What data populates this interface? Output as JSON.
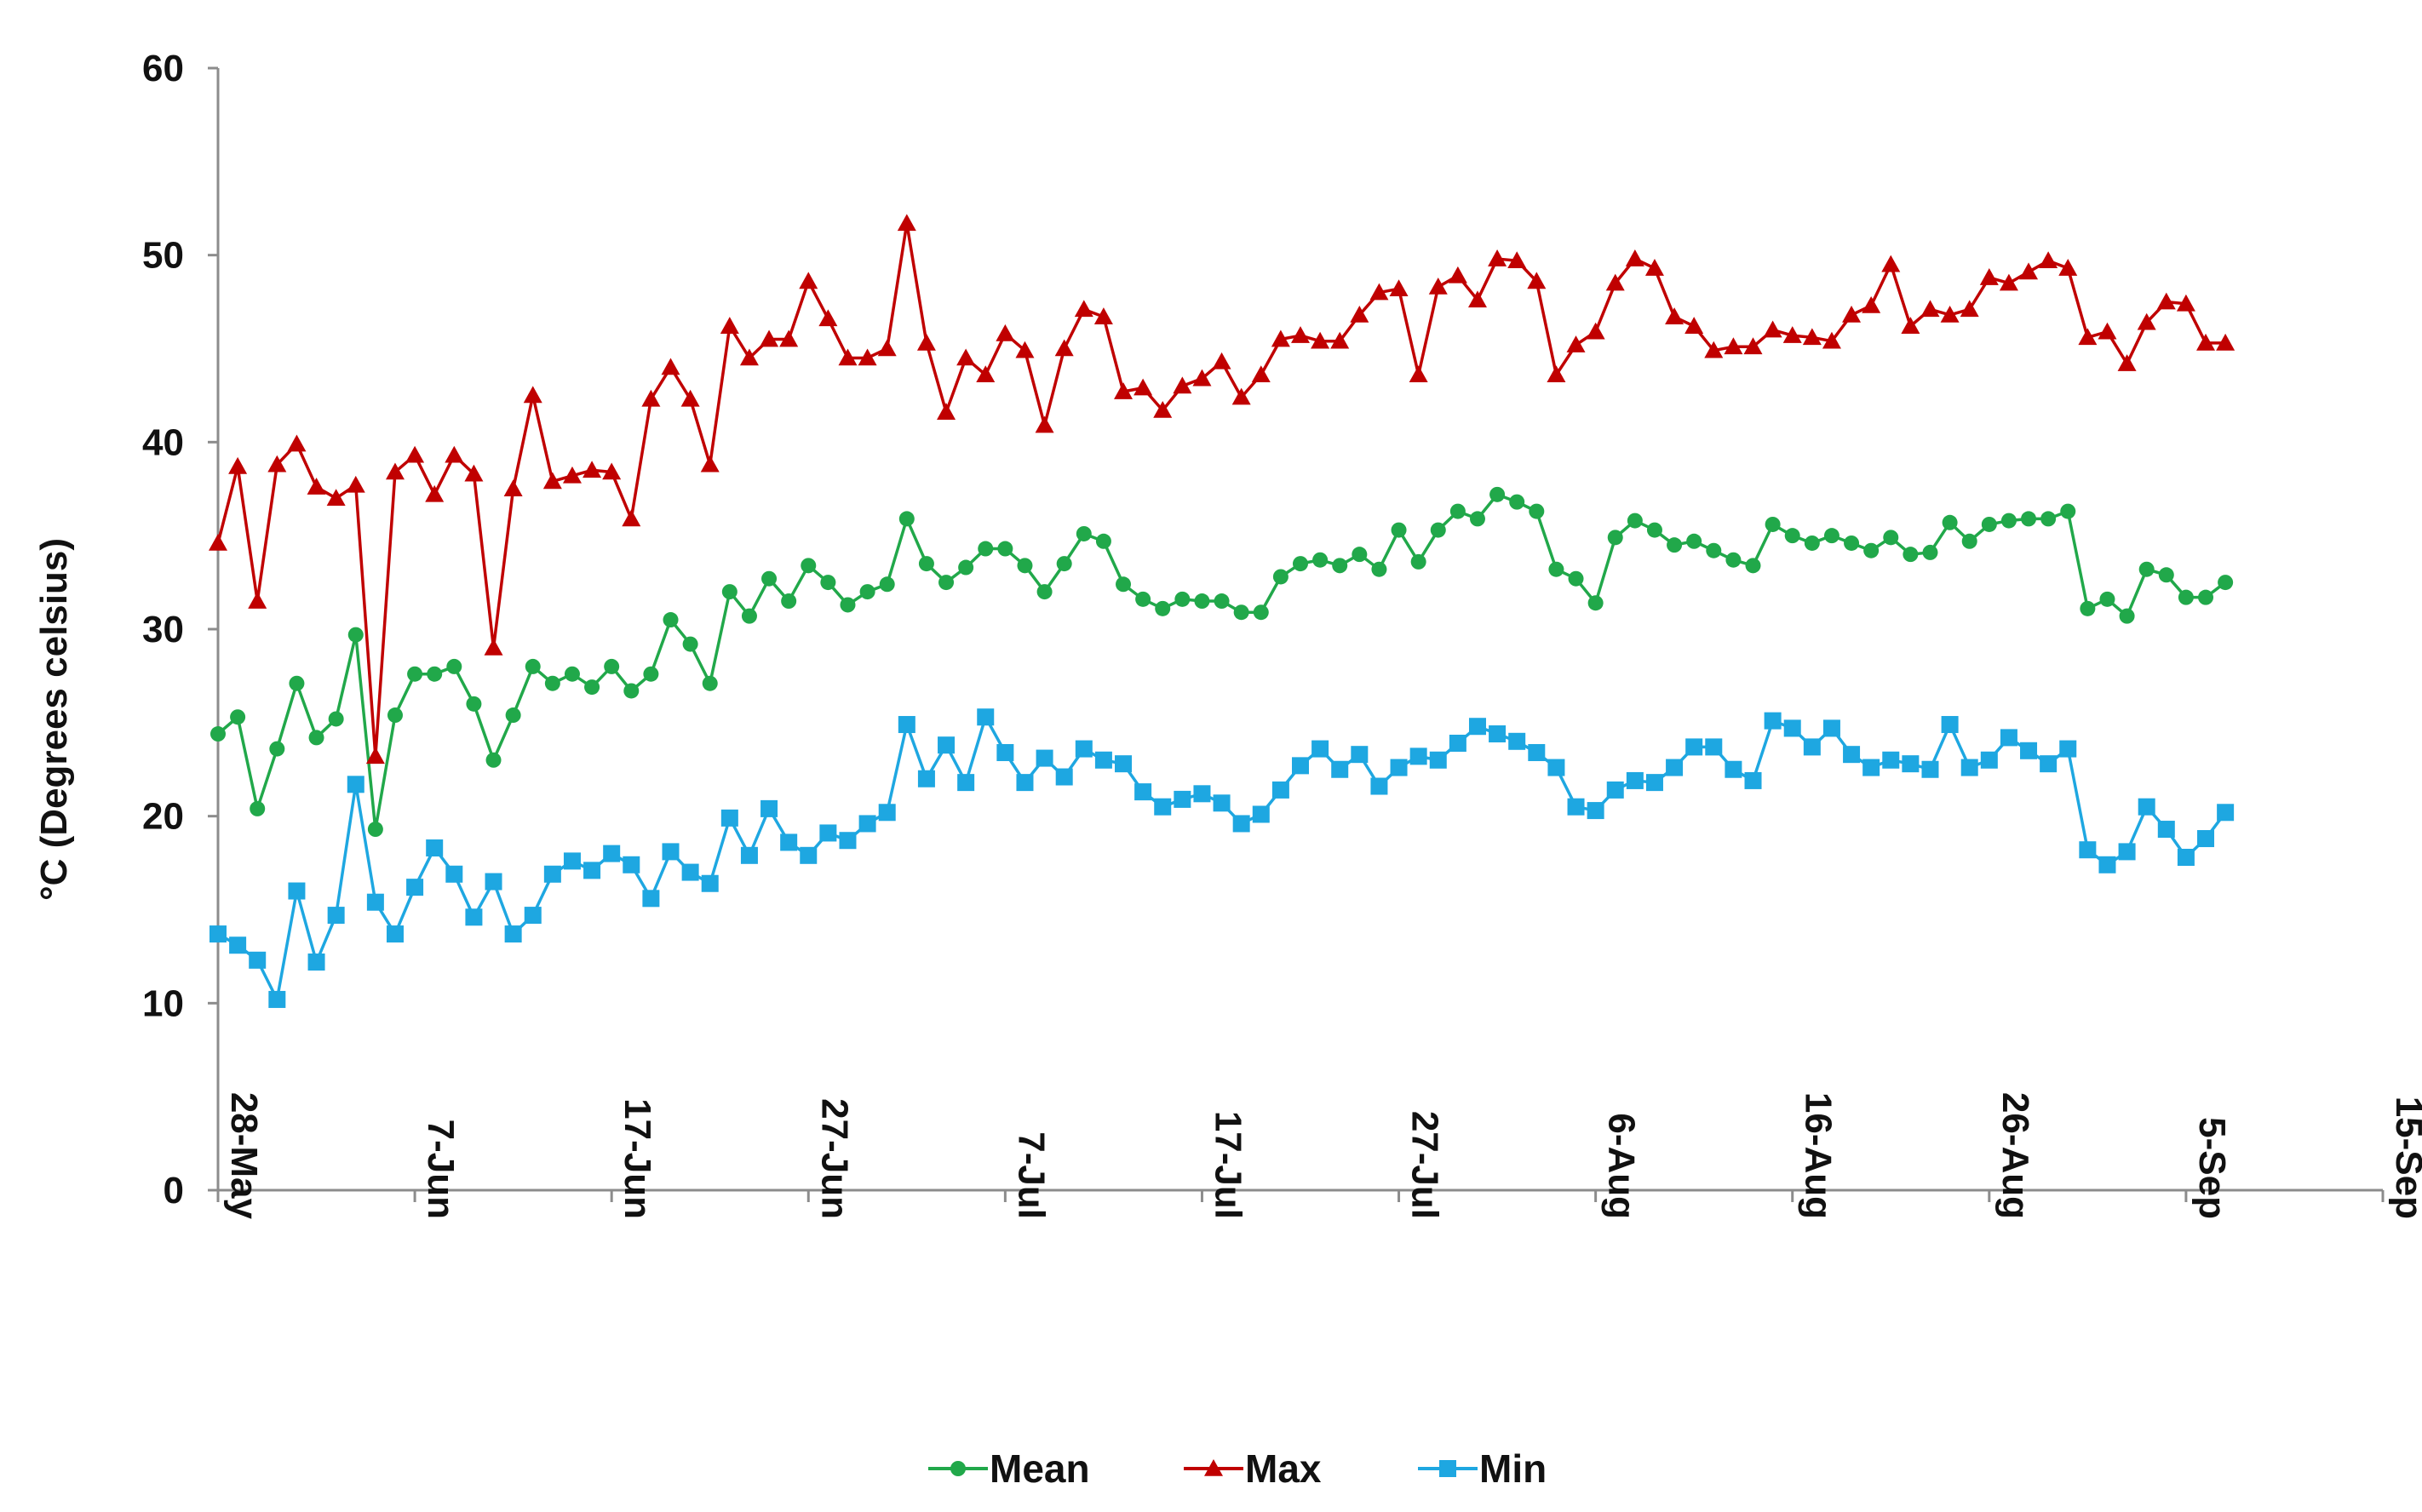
{
  "chart_data": {
    "type": "line",
    "title": "",
    "xlabel": "",
    "ylabel": "°C (Degrees celsius)",
    "ylim": [
      0,
      60
    ],
    "xlim": [
      "28-May",
      "15-Sep"
    ],
    "y_ticks": [
      "0",
      "10",
      "20",
      "30",
      "40",
      "50",
      "60"
    ],
    "x_ticks": [
      "28-May",
      "7-Jun",
      "17-Jun",
      "27-Jun",
      "7-Jul",
      "17-Jul",
      "27-Jul",
      "6-Aug",
      "16-Aug",
      "26-Aug",
      "5-Sep",
      "15-Sep"
    ],
    "grid": false,
    "legend_position": "bottom",
    "x_start_date": "28-May",
    "x_unit": "day",
    "x_dates": [
      "28-May",
      "29-May",
      "30-May",
      "31-May",
      "1-Jun",
      "2-Jun",
      "3-Jun",
      "4-Jun",
      "5-Jun",
      "6-Jun",
      "7-Jun",
      "8-Jun",
      "9-Jun",
      "10-Jun",
      "11-Jun",
      "12-Jun",
      "13-Jun",
      "14-Jun",
      "15-Jun",
      "16-Jun",
      "17-Jun",
      "18-Jun",
      "19-Jun",
      "20-Jun",
      "21-Jun",
      "22-Jun",
      "23-Jun",
      "24-Jun",
      "25-Jun",
      "26-Jun",
      "27-Jun",
      "28-Jun",
      "29-Jun",
      "30-Jun",
      "1-Jul",
      "2-Jul",
      "3-Jul",
      "4-Jul",
      "5-Jul",
      "6-Jul",
      "7-Jul",
      "8-Jul",
      "9-Jul",
      "10-Jul",
      "11-Jul",
      "12-Jul",
      "13-Jul",
      "14-Jul",
      "15-Jul",
      "16-Jul",
      "17-Jul",
      "18-Jul",
      "19-Jul",
      "20-Jul",
      "21-Jul",
      "22-Jul",
      "23-Jul",
      "24-Jul",
      "25-Jul",
      "26-Jul",
      "27-Jul",
      "28-Jul",
      "29-Jul",
      "30-Jul",
      "31-Jul",
      "1-Aug",
      "2-Aug",
      "3-Aug",
      "4-Aug",
      "5-Aug",
      "6-Aug",
      "7-Aug",
      "8-Aug",
      "9-Aug",
      "10-Aug",
      "11-Aug",
      "12-Aug",
      "13-Aug",
      "14-Aug",
      "15-Aug",
      "16-Aug",
      "17-Aug",
      "18-Aug",
      "19-Aug",
      "20-Aug",
      "21-Aug",
      "22-Aug",
      "23-Aug",
      "24-Aug",
      "25-Aug",
      "26-Aug",
      "27-Aug",
      "28-Aug",
      "29-Aug",
      "30-Aug",
      "31-Aug",
      "1-Sep",
      "2-Sep",
      "3-Sep",
      "4-Sep",
      "5-Sep",
      "6-Sep",
      "7-Sep"
    ],
    "series": [
      {
        "name": "Mean",
        "color": "#21a84a",
        "marker": "circle",
        "values": [
          24.4,
          25.3,
          20.4,
          23.6,
          27.1,
          24.2,
          25.2,
          29.7,
          19.3,
          25.4,
          27.6,
          27.6,
          28.0,
          26.0,
          23.0,
          25.4,
          28.0,
          27.1,
          27.6,
          26.9,
          28.0,
          26.7,
          27.6,
          30.5,
          29.2,
          27.1,
          32.0,
          30.7,
          32.7,
          31.5,
          33.4,
          32.5,
          31.3,
          32.0,
          32.4,
          35.9,
          33.5,
          32.5,
          33.3,
          34.3,
          34.3,
          33.4,
          32.0,
          33.5,
          35.1,
          34.7,
          32.4,
          31.6,
          31.1,
          31.6,
          31.5,
          31.5,
          30.9,
          30.9,
          32.8,
          33.5,
          33.7,
          33.4,
          34.0,
          33.2,
          35.3,
          33.6,
          35.3,
          36.3,
          35.9,
          37.2,
          36.8,
          36.3,
          33.2,
          32.7,
          31.4,
          34.9,
          35.8,
          35.3,
          34.5,
          34.7,
          34.2,
          33.7,
          33.4,
          35.6,
          35.0,
          34.6,
          35.0,
          34.6,
          34.2,
          34.9,
          34.0,
          34.1,
          35.7,
          34.7,
          35.6,
          35.8,
          35.9,
          35.9,
          36.3,
          31.1,
          31.6,
          30.7,
          33.2,
          32.9,
          31.7,
          31.7,
          32.5
        ]
      },
      {
        "name": "Max",
        "color": "#c00000",
        "marker": "triangle",
        "values": [
          34.6,
          38.7,
          31.5,
          38.8,
          39.9,
          37.6,
          37.0,
          37.7,
          23.2,
          38.4,
          39.3,
          37.2,
          39.3,
          38.3,
          29.0,
          37.5,
          42.5,
          37.9,
          38.2,
          38.5,
          38.4,
          35.9,
          42.3,
          44.0,
          42.3,
          38.8,
          46.2,
          44.5,
          45.5,
          45.5,
          48.6,
          46.6,
          44.5,
          44.5,
          45.0,
          51.7,
          45.3,
          41.6,
          44.5,
          43.6,
          45.8,
          44.9,
          40.9,
          45.0,
          47.1,
          46.7,
          42.7,
          42.9,
          41.7,
          43.0,
          43.4,
          44.3,
          42.4,
          43.6,
          45.5,
          45.7,
          45.4,
          45.4,
          46.8,
          48.0,
          48.2,
          43.6,
          48.3,
          48.9,
          47.6,
          49.8,
          49.7,
          48.6,
          43.6,
          45.2,
          45.9,
          48.5,
          49.8,
          49.3,
          46.7,
          46.2,
          44.9,
          45.1,
          45.1,
          46.0,
          45.7,
          45.6,
          45.4,
          46.8,
          47.3,
          49.5,
          46.2,
          47.1,
          46.8,
          47.1,
          48.8,
          48.5,
          49.1,
          49.7,
          49.3,
          45.6,
          45.9,
          44.2,
          46.4,
          47.5,
          47.4,
          45.3,
          45.3
        ]
      },
      {
        "name": "Min",
        "color": "#1ea7e1",
        "marker": "square",
        "values": [
          13.7,
          13.1,
          12.3,
          10.2,
          16.0,
          12.2,
          14.7,
          21.7,
          15.4,
          13.7,
          16.2,
          18.3,
          16.9,
          14.6,
          16.5,
          13.7,
          14.7,
          16.9,
          17.6,
          17.1,
          18.0,
          17.4,
          15.6,
          18.1,
          17.0,
          16.4,
          19.9,
          17.9,
          20.4,
          18.6,
          17.9,
          19.1,
          18.7,
          19.6,
          20.2,
          24.9,
          22.0,
          23.8,
          21.8,
          25.3,
          23.4,
          21.8,
          23.1,
          22.1,
          23.6,
          23.0,
          22.8,
          21.3,
          20.5,
          20.9,
          21.2,
          20.7,
          19.6,
          20.1,
          21.4,
          22.7,
          23.6,
          22.5,
          23.3,
          21.6,
          22.6,
          23.2,
          23.0,
          23.9,
          24.8,
          24.4,
          24.0,
          23.4,
          22.6,
          20.5,
          20.3,
          21.4,
          21.9,
          21.8,
          22.6,
          23.7,
          23.7,
          22.5,
          21.9,
          25.1,
          24.7,
          23.7,
          24.7,
          23.3,
          22.6,
          23.0,
          22.8,
          22.5,
          24.9,
          22.6,
          23.0,
          24.2,
          23.5,
          22.8,
          23.6,
          18.2,
          17.4,
          18.1,
          20.5,
          19.3,
          17.8,
          18.8,
          20.2
        ]
      }
    ]
  }
}
